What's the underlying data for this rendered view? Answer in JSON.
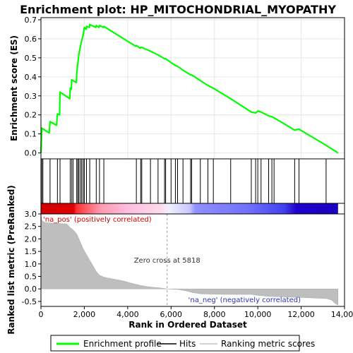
{
  "chart_data": {
    "type": "line",
    "title": "Enrichment plot: HP_MITOCHONDRIAL_MYOPATHY",
    "ylabel_top": "Enrichment score (ES)",
    "ylabel_bottom": "Ranked list metric (PreRanked)",
    "xlabel": "Rank in Ordered Dataset",
    "x_range": [
      0,
      14000
    ],
    "es_ylim": [
      -0.02,
      0.7
    ],
    "es_yticks": [
      "0.0",
      "0.1",
      "0.2",
      "0.3",
      "0.4",
      "0.5",
      "0.6",
      "0.7"
    ],
    "es_ytick_values": [
      0.0,
      0.1,
      0.2,
      0.3,
      0.4,
      0.5,
      0.6,
      0.7
    ],
    "metric_ylim": [
      -0.7,
      3.0
    ],
    "metric_yticks": [
      "-0.5",
      "0.0",
      "0.5",
      "1.0",
      "1.5",
      "2.0",
      "2.5",
      "3.0"
    ],
    "metric_ytick_values": [
      -0.5,
      0.0,
      0.5,
      1.0,
      1.5,
      2.0,
      2.5,
      3.0
    ],
    "xticks": [
      "0",
      "2,000",
      "4,000",
      "6,000",
      "8,000",
      "10,000",
      "12,000",
      "14,000"
    ],
    "xtick_values": [
      0,
      2000,
      4000,
      6000,
      8000,
      10000,
      12000,
      14000
    ],
    "total_genes": 13700,
    "zero_cross_rank": 5818,
    "zero_cross_label": "Zero cross at 5818",
    "na_pos_label": "'na_pos' (positively correlated)",
    "na_neg_label": "'na_neg' (negatively correlated)",
    "hits": [
      40,
      90,
      420,
      760,
      880,
      1350,
      1420,
      1480,
      1650,
      1700,
      1750,
      1820,
      1880,
      1950,
      2000,
      2100,
      2250,
      2550,
      2700,
      2900,
      4400,
      4600,
      4650,
      5050,
      5400,
      5700,
      5750,
      6000,
      6200,
      6300,
      6550,
      6900,
      6950,
      7350,
      7700,
      7950,
      8750,
      9700,
      9900,
      10000,
      10150,
      10500,
      10650,
      10750,
      11700,
      11900,
      13150
    ],
    "es_curve": [
      [
        0,
        0.0
      ],
      [
        40,
        0.13
      ],
      [
        380,
        0.105
      ],
      [
        420,
        0.165
      ],
      [
        720,
        0.145
      ],
      [
        760,
        0.205
      ],
      [
        860,
        0.2
      ],
      [
        880,
        0.32
      ],
      [
        1330,
        0.285
      ],
      [
        1350,
        0.34
      ],
      [
        1400,
        0.335
      ],
      [
        1420,
        0.385
      ],
      [
        1630,
        0.37
      ],
      [
        1650,
        0.42
      ],
      [
        1700,
        0.47
      ],
      [
        1750,
        0.52
      ],
      [
        1820,
        0.56
      ],
      [
        1880,
        0.59
      ],
      [
        1950,
        0.62
      ],
      [
        2000,
        0.66
      ],
      [
        2080,
        0.65
      ],
      [
        2100,
        0.665
      ],
      [
        2230,
        0.66
      ],
      [
        2250,
        0.675
      ],
      [
        2530,
        0.66
      ],
      [
        2550,
        0.67
      ],
      [
        2680,
        0.66
      ],
      [
        2700,
        0.67
      ],
      [
        2880,
        0.66
      ],
      [
        2900,
        0.665
      ],
      [
        4380,
        0.56
      ],
      [
        4400,
        0.565
      ],
      [
        4580,
        0.55
      ],
      [
        4600,
        0.555
      ],
      [
        4650,
        0.555
      ],
      [
        5050,
        0.535
      ],
      [
        5400,
        0.515
      ],
      [
        5700,
        0.495
      ],
      [
        5750,
        0.495
      ],
      [
        6000,
        0.475
      ],
      [
        6200,
        0.46
      ],
      [
        6300,
        0.455
      ],
      [
        6550,
        0.435
      ],
      [
        6900,
        0.41
      ],
      [
        6950,
        0.41
      ],
      [
        7350,
        0.38
      ],
      [
        7700,
        0.355
      ],
      [
        7950,
        0.34
      ],
      [
        8750,
        0.285
      ],
      [
        9700,
        0.215
      ],
      [
        9900,
        0.21
      ],
      [
        10000,
        0.22
      ],
      [
        10150,
        0.215
      ],
      [
        10500,
        0.195
      ],
      [
        10650,
        0.19
      ],
      [
        10750,
        0.185
      ],
      [
        11700,
        0.12
      ],
      [
        11900,
        0.125
      ],
      [
        13150,
        0.04
      ],
      [
        13700,
        0.0
      ]
    ],
    "metric_curve": [
      [
        0,
        3.0
      ],
      [
        40,
        2.75
      ],
      [
        200,
        2.65
      ],
      [
        1200,
        2.6
      ],
      [
        1350,
        2.45
      ],
      [
        1500,
        2.35
      ],
      [
        1650,
        2.2
      ],
      [
        1750,
        2.0
      ],
      [
        1850,
        1.8
      ],
      [
        1950,
        1.6
      ],
      [
        2050,
        1.45
      ],
      [
        2150,
        1.3
      ],
      [
        2250,
        1.15
      ],
      [
        2350,
        1.0
      ],
      [
        2450,
        0.85
      ],
      [
        2550,
        0.7
      ],
      [
        2700,
        0.55
      ],
      [
        2900,
        0.47
      ],
      [
        3300,
        0.4
      ],
      [
        3800,
        0.32
      ],
      [
        4200,
        0.22
      ],
      [
        4600,
        0.14
      ],
      [
        5000,
        0.08
      ],
      [
        5500,
        0.04
      ],
      [
        5818,
        0.0
      ],
      [
        6300,
        -0.02
      ],
      [
        6700,
        -0.08
      ],
      [
        7000,
        -0.15
      ],
      [
        7400,
        -0.2
      ],
      [
        8500,
        -0.22
      ],
      [
        9700,
        -0.22
      ],
      [
        10000,
        -0.26
      ],
      [
        10500,
        -0.3
      ],
      [
        11500,
        -0.33
      ],
      [
        12500,
        -0.36
      ],
      [
        13200,
        -0.39
      ],
      [
        13400,
        -0.45
      ],
      [
        13600,
        -0.6
      ],
      [
        13700,
        -0.65
      ]
    ],
    "series": [
      {
        "name": "Enrichment profile",
        "color": "#00ff00"
      },
      {
        "name": "Hits",
        "color": "#000000"
      },
      {
        "name": "Ranking metric scores",
        "color": "#c0c0c0"
      }
    ]
  },
  "legend": {
    "enrichment_profile": "Enrichment profile",
    "hits": "Hits",
    "ranking_metric": "Ranking metric scores"
  }
}
